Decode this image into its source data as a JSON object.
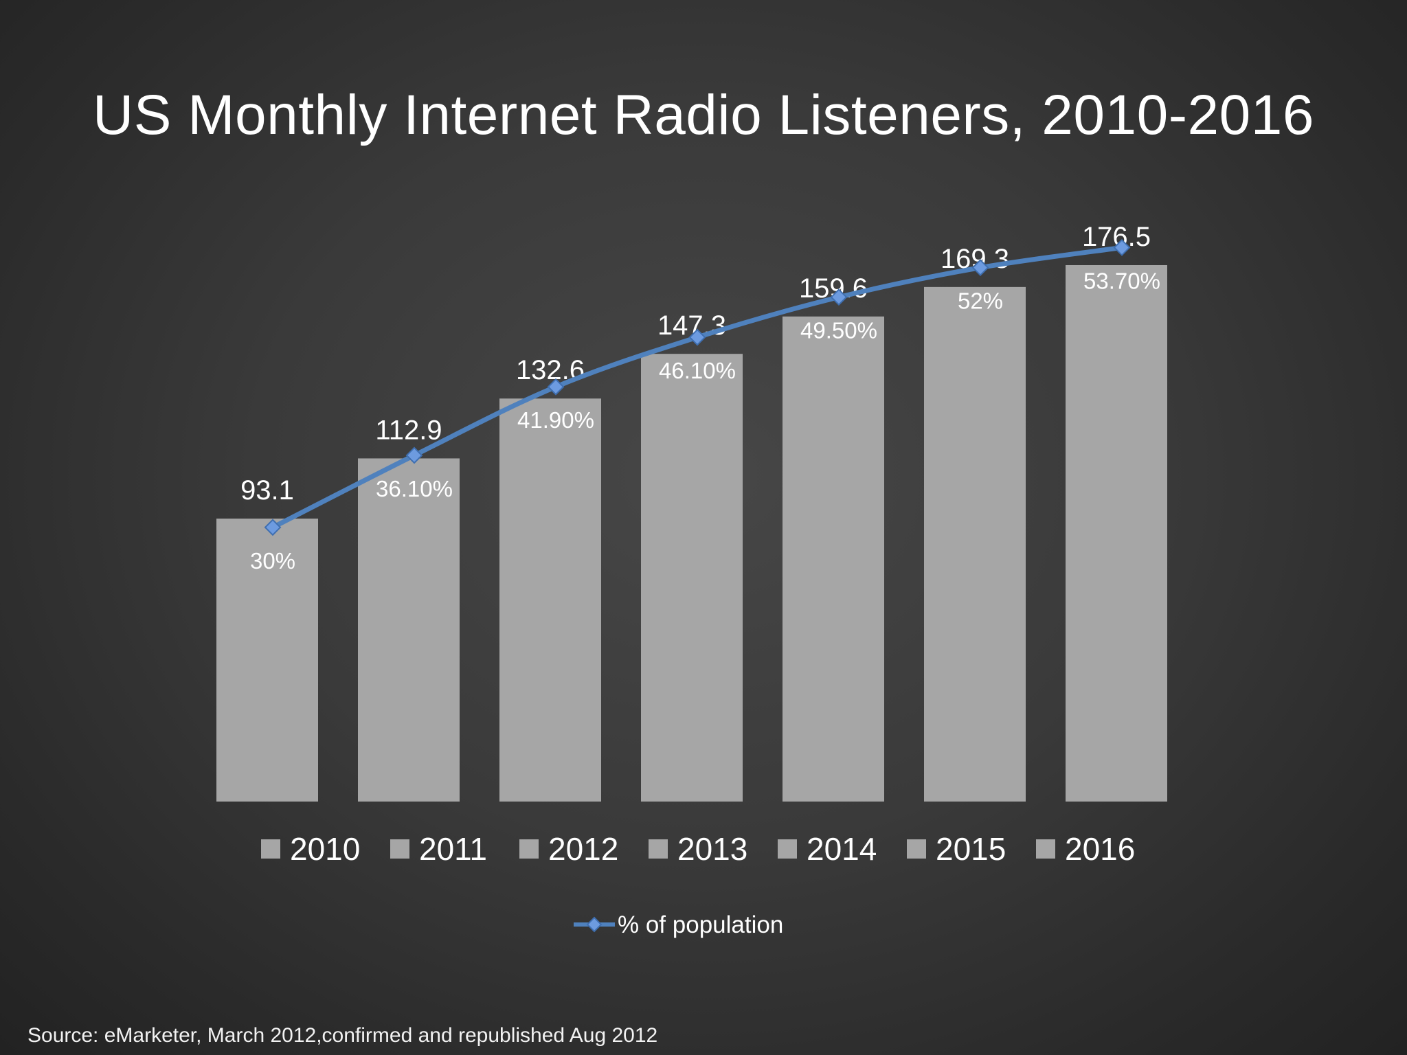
{
  "title": "US Monthly Internet Radio Listeners, 2010-2016",
  "source": "Source: eMarketer, March 2012,confirmed and republished Aug 2012",
  "colors": {
    "bar": "#a6a6a6",
    "line": "#4f81bd",
    "marker": "#6d9be0",
    "text": "#ffffff"
  },
  "chart_data": {
    "type": "bar",
    "categories": [
      "2010",
      "2011",
      "2012",
      "2013",
      "2014",
      "2015",
      "2016"
    ],
    "series": [
      {
        "type": "bar",
        "values": [
          93.1,
          112.9,
          132.6,
          147.3,
          159.6,
          169.3,
          176.5
        ],
        "labels": [
          "93.1",
          "112.9",
          "132.6",
          "147.3",
          "159.6",
          "169.3",
          "176.5"
        ]
      },
      {
        "type": "line",
        "name": "% of population",
        "values": [
          30,
          36.1,
          41.9,
          46.1,
          49.5,
          52,
          53.7
        ],
        "labels": [
          "30%",
          "36.10%",
          "41.90%",
          "46.10%",
          "49.50%",
          "52%",
          "53.70%"
        ]
      }
    ],
    "legend": {
      "position": "bottom",
      "line_label": "% of population"
    },
    "grid": false
  }
}
